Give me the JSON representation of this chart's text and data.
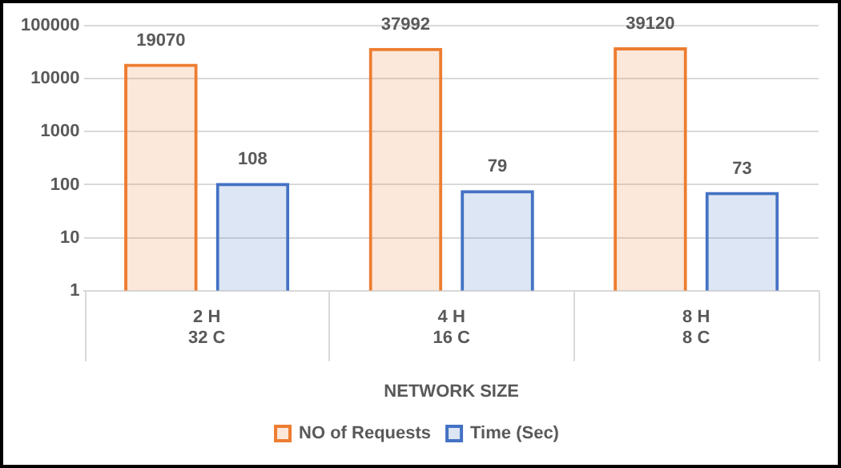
{
  "chart_data": {
    "type": "bar",
    "xlabel": "NETWORK SIZE",
    "categories": [
      "2 H\n32 C",
      "4 H\n16 C",
      "8 H\n8 C"
    ],
    "series": [
      {
        "name": "NO of Requests",
        "color": "#ed7d31",
        "values": [
          19070,
          37992,
          39120
        ]
      },
      {
        "name": "Time (Sec)",
        "color": "#4472c4",
        "values": [
          108,
          79,
          73
        ]
      }
    ],
    "log": "y",
    "ylim": [
      1,
      100000
    ],
    "yticks": [
      1,
      10,
      100,
      1000,
      10000,
      100000
    ],
    "grid": "y",
    "legend": "bottom",
    "data_labels": true
  }
}
